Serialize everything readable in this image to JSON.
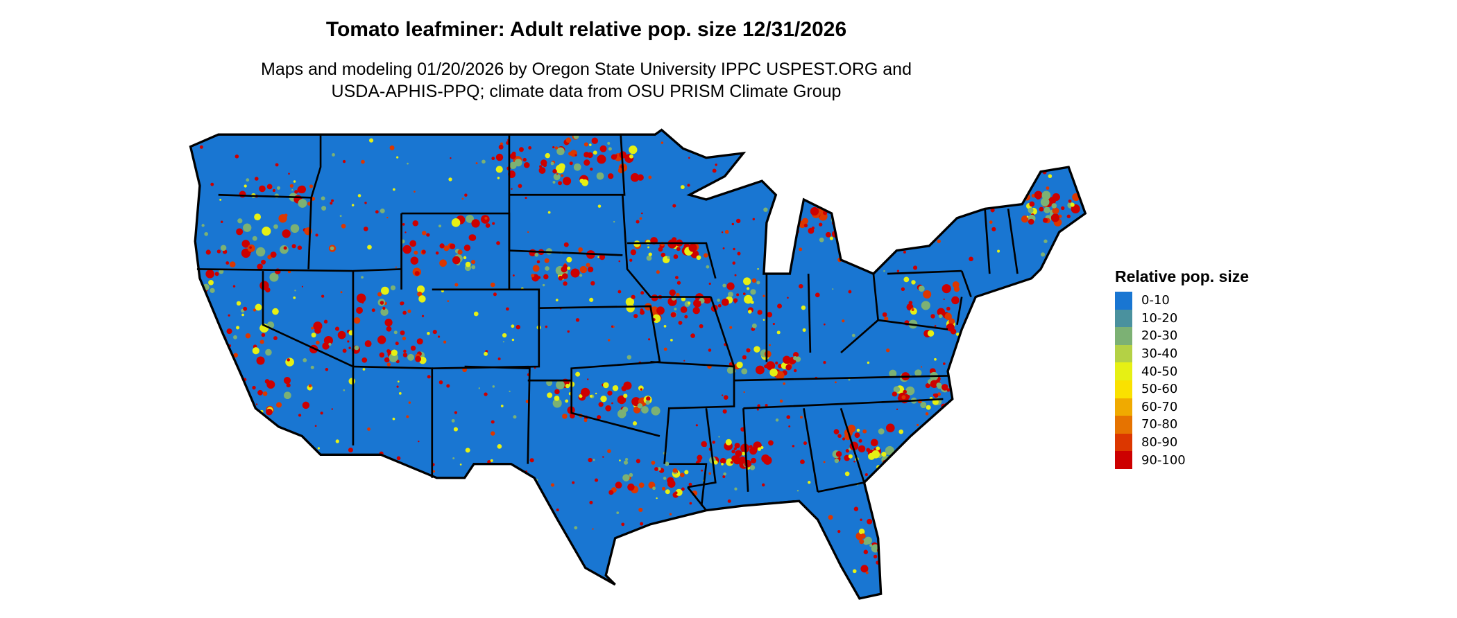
{
  "title": "Tomato leafminer: Adult relative pop. size 12/31/2026",
  "subtitle_line1": "Maps and modeling 01/20/2026 by Oregon State University IPPC USPEST.ORG and",
  "subtitle_line2": "USDA-APHIS-PPQ; climate data from OSU PRISM Climate Group",
  "map": {
    "region": "Contiguous United States",
    "background_color": "#1976D2",
    "border_color": "#000000"
  },
  "legend": {
    "title": "Relative pop. size",
    "items": [
      {
        "label": "0-10",
        "color": "#1976D2"
      },
      {
        "label": "10-20",
        "color": "#4A919E"
      },
      {
        "label": "20-30",
        "color": "#7CB174"
      },
      {
        "label": "30-40",
        "color": "#B4D145"
      },
      {
        "label": "40-50",
        "color": "#E6F014"
      },
      {
        "label": "50-60",
        "color": "#FAE100"
      },
      {
        "label": "60-70",
        "color": "#F0AA00"
      },
      {
        "label": "70-80",
        "color": "#E67300"
      },
      {
        "label": "80-90",
        "color": "#DC3700"
      },
      {
        "label": "90-100",
        "color": "#CD0000"
      }
    ]
  }
}
